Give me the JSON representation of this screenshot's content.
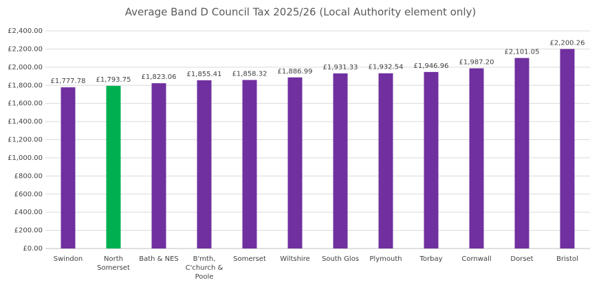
{
  "chart_data": {
    "type": "bar",
    "title": "Average Band D Council Tax 2025/26 (Local Authority element only)",
    "categories": [
      "Swindon",
      "North Somerset",
      "Bath & NES",
      "B'mth, C'church & Poole",
      "Somerset",
      "Wiltshire",
      "South Glos",
      "Plymouth",
      "Torbay",
      "Cornwall",
      "Dorset",
      "Bristol"
    ],
    "values": [
      1777.78,
      1793.75,
      1823.06,
      1855.41,
      1858.32,
      1886.99,
      1931.33,
      1932.54,
      1946.96,
      1987.2,
      2101.05,
      2200.26
    ],
    "value_labels": [
      "£1,777.78",
      "£1,793.75",
      "£1,823.06",
      "£1,855.41",
      "£1,858.32",
      "£1,886.99",
      "£1,931.33",
      "£1,932.54",
      "£1,946.96",
      "£1,987.20",
      "£2,101.05",
      "£2,200.26"
    ],
    "colors": [
      "#7030a0",
      "#00b050",
      "#7030a0",
      "#7030a0",
      "#7030a0",
      "#7030a0",
      "#7030a0",
      "#7030a0",
      "#7030a0",
      "#7030a0",
      "#7030a0",
      "#7030a0"
    ],
    "ylim": [
      0,
      2400
    ],
    "yticks": [
      {
        "value": 0,
        "label": "£0.00"
      },
      {
        "value": 200,
        "label": "£200.00"
      },
      {
        "value": 400,
        "label": "£400.00"
      },
      {
        "value": 600,
        "label": "£600.00"
      },
      {
        "value": 800,
        "label": "£800.00"
      },
      {
        "value": 1000,
        "label": "£1,000.00"
      },
      {
        "value": 1200,
        "label": "£1,200.00"
      },
      {
        "value": 1400,
        "label": "£1,400.00"
      },
      {
        "value": 1600,
        "label": "£1,600.00"
      },
      {
        "value": 1800,
        "label": "£1,800.00"
      },
      {
        "value": 2000,
        "label": "£2,000.00"
      },
      {
        "value": 2200,
        "label": "£2,200.00"
      },
      {
        "value": 2400,
        "label": "£2,400.00"
      }
    ],
    "grid": true
  }
}
